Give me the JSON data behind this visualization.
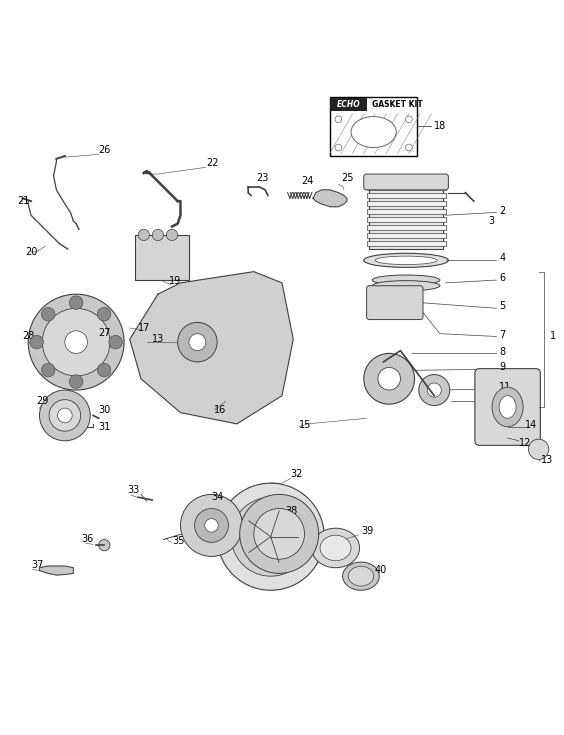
{
  "bg_color": "#ffffff",
  "line_color": "#404040",
  "text_color": "#000000",
  "fig_width": 5.64,
  "fig_height": 7.35,
  "dpi": 100
}
